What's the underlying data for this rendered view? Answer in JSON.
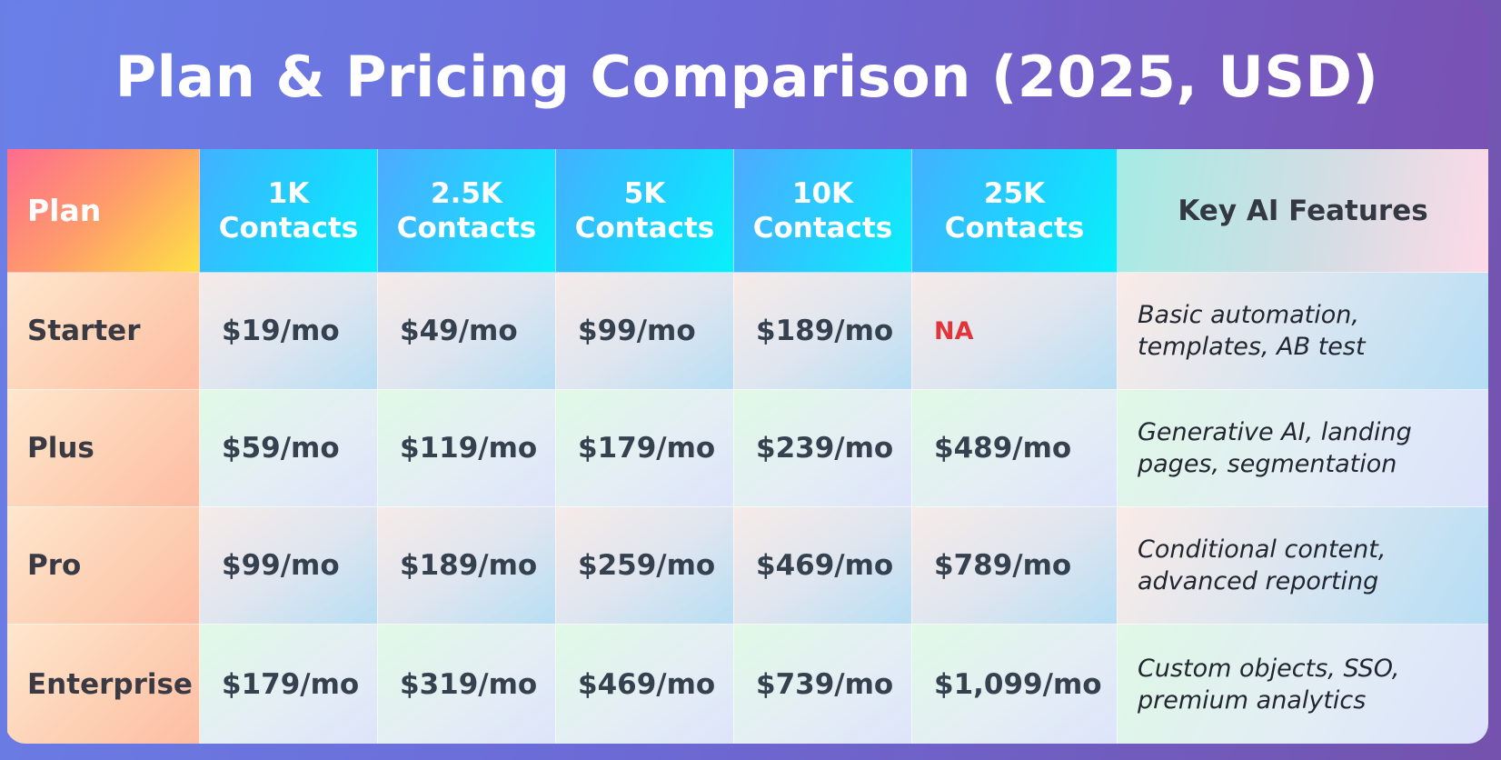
{
  "title": "Plan & Pricing Comparison (2025, USD)",
  "headers": {
    "plan": "Plan",
    "tiers": [
      "1K\nContacts",
      "2.5K\nContacts",
      "5K\nContacts",
      "10K\nContacts",
      "25K\nContacts"
    ],
    "features": "Key AI Features"
  },
  "rows": [
    {
      "plan": "Starter",
      "prices": [
        "$19/mo",
        "$49/mo",
        "$99/mo",
        "$189/mo",
        "NA"
      ],
      "features": "Basic automation,\ntemplates, AB test"
    },
    {
      "plan": "Plus",
      "prices": [
        "$59/mo",
        "$119/mo",
        "$179/mo",
        "$239/mo",
        "$489/mo"
      ],
      "features": "Generative AI, landing\npages, segmentation"
    },
    {
      "plan": "Pro",
      "prices": [
        "$99/mo",
        "$189/mo",
        "$259/mo",
        "$469/mo",
        "$789/mo"
      ],
      "features": "Conditional content,\nadvanced reporting"
    },
    {
      "plan": "Enterprise",
      "prices": [
        "$179/mo",
        "$319/mo",
        "$469/mo",
        "$739/mo",
        "$1,099/mo"
      ],
      "features": "Custom objects, SSO,\npremium analytics"
    }
  ],
  "colors": {
    "na_text": "#e0353b",
    "price_text": "#36414f",
    "header_text": "#ffffff"
  }
}
